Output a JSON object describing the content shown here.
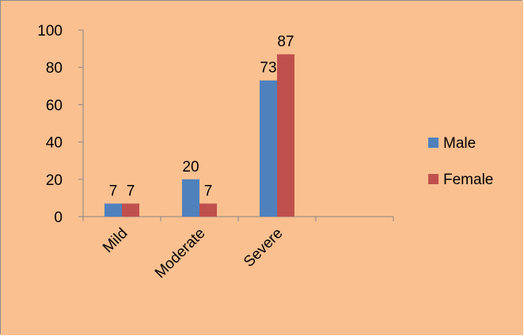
{
  "chart_data": {
    "type": "bar",
    "categories": [
      "Mild",
      "Moderate",
      "Severe",
      ""
    ],
    "series": [
      {
        "name": "Male",
        "values": [
          7,
          20,
          73,
          null
        ],
        "color": "#4f81bd"
      },
      {
        "name": "Female",
        "values": [
          7,
          7,
          87,
          null
        ],
        "color": "#c0504d"
      }
    ],
    "ylim": [
      0,
      100
    ],
    "yticks": [
      0,
      20,
      40,
      60,
      80,
      100
    ],
    "ytick_labels": [
      "0",
      "20",
      "40",
      "60",
      "80",
      "100"
    ],
    "legend_placement": "right",
    "grid": false,
    "background_color": "#fac090"
  }
}
